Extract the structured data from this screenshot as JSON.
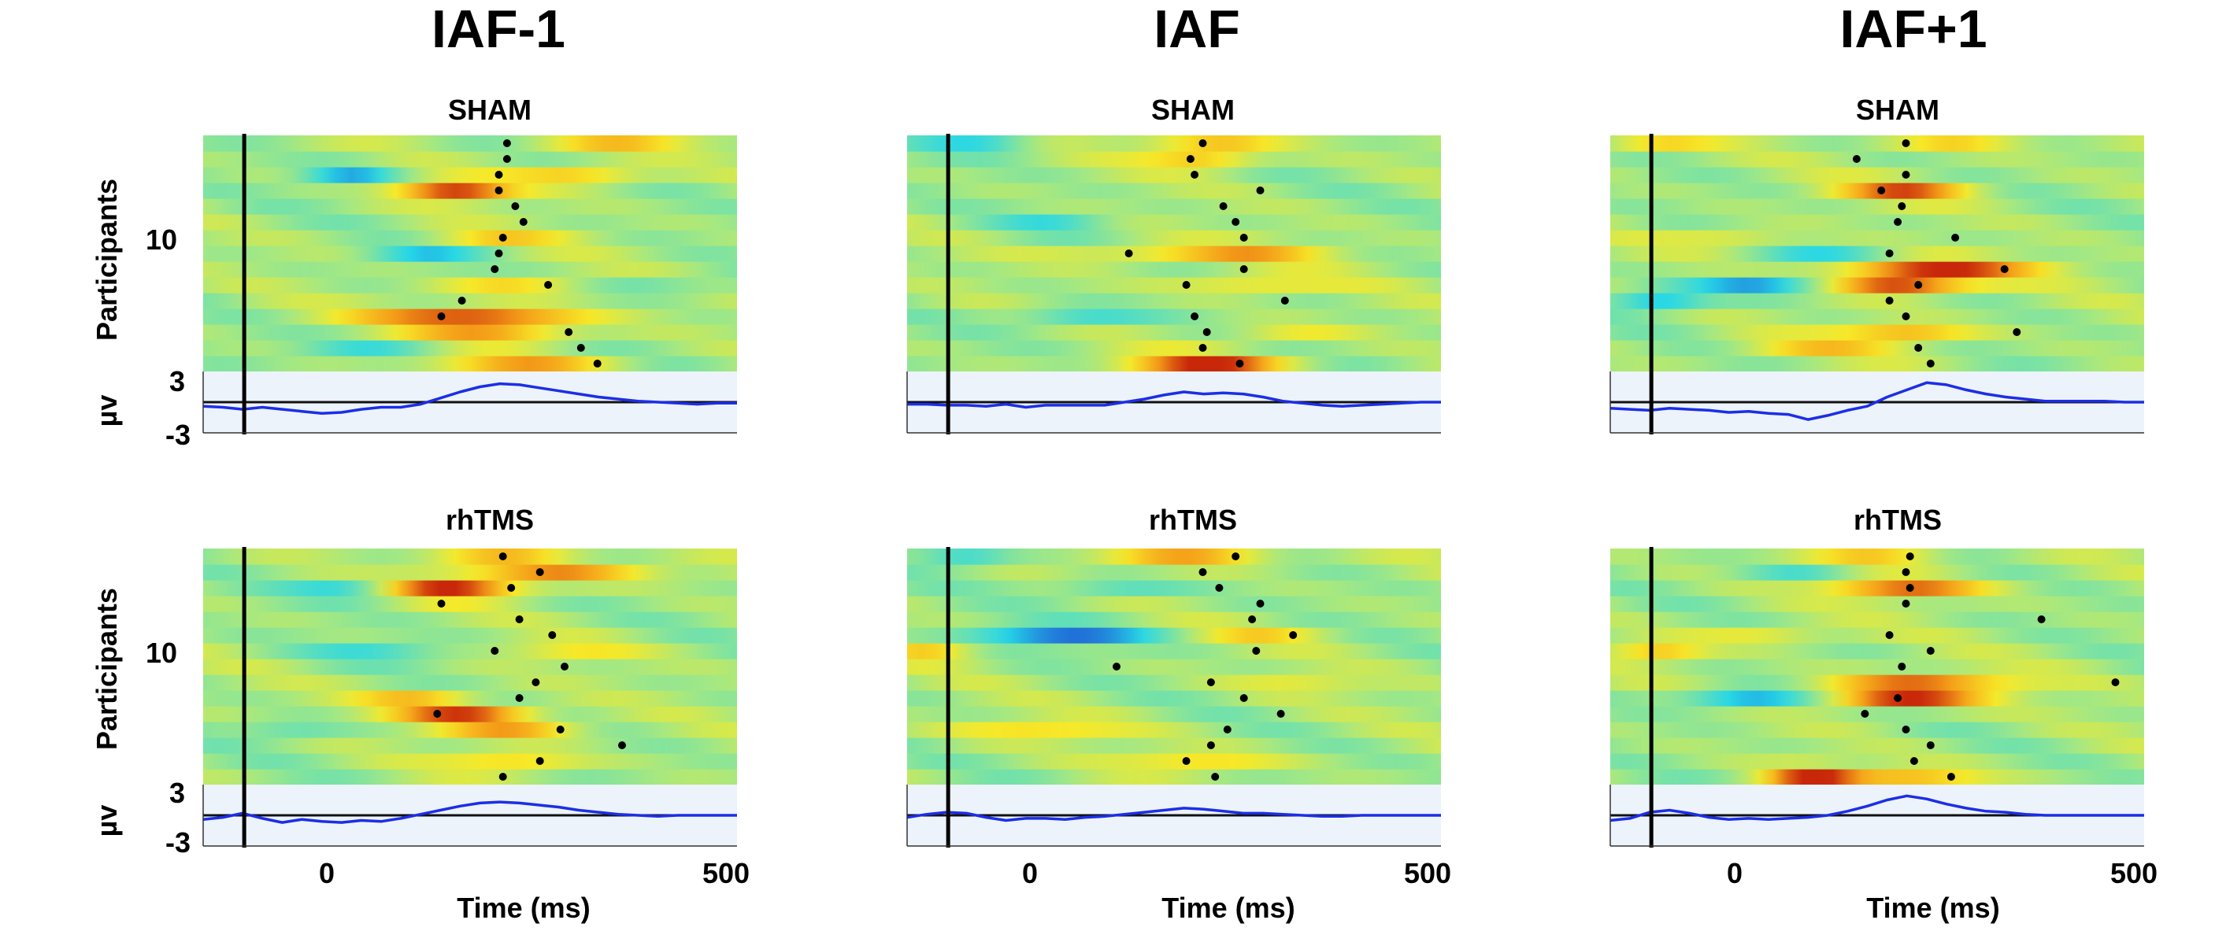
{
  "figure": {
    "columns": [
      "IAF-1",
      "IAF",
      "IAF+1"
    ],
    "rows": [
      "SHAM",
      "rhTMS"
    ],
    "ylabel_heatmap": "Participants",
    "ylabel_erp": "µv",
    "heatmap_y_ticks": [
      "10"
    ],
    "erp_y_ticks": [
      "3",
      "-3"
    ],
    "x_ticks": [
      "0",
      "500"
    ],
    "xlabel": "Time (ms)"
  },
  "chart_data": {
    "type": "heatmap",
    "time_range_ms": [
      -150,
      500
    ],
    "erp_ylim": [
      -3,
      3
    ],
    "participants": 15,
    "colormap": [
      "#1f3fd0",
      "#25d7e8",
      "#a5e882",
      "#f7e928",
      "#f5a019",
      "#c8270a"
    ],
    "panels": [
      {
        "column": "IAF-1",
        "condition": "SHAM",
        "peaks_ms": [
          330,
          310,
          295,
          140,
          165,
          270,
          205,
          210,
          215,
          240,
          230,
          210,
          210,
          220,
          220
        ],
        "blobs": [
          {
            "t": 350,
            "p": 15,
            "w": 70,
            "a": 0.45
          },
          {
            "t": 310,
            "p": 13,
            "w": 60,
            "a": 0.55
          },
          {
            "t": 155,
            "p": 12,
            "w": 50,
            "a": 0.95
          },
          {
            "t": 30,
            "p": 13,
            "w": 40,
            "a": -0.6
          },
          {
            "t": 200,
            "p": 9,
            "w": 70,
            "a": 0.35
          },
          {
            "t": 120,
            "p": 8,
            "w": 50,
            "a": -0.45
          },
          {
            "t": 240,
            "p": 6,
            "w": 70,
            "a": 0.45
          },
          {
            "t": 180,
            "p": 4,
            "w": 90,
            "a": 0.9
          },
          {
            "t": 210,
            "p": 3,
            "w": 70,
            "a": 0.55
          },
          {
            "t": 240,
            "p": 1,
            "w": 80,
            "a": 0.55
          },
          {
            "t": 60,
            "p": 2,
            "w": 60,
            "a": -0.35
          },
          {
            "t": 400,
            "p": 6,
            "w": 80,
            "a": -0.3
          }
        ],
        "erp_uv": [
          -0.4,
          -0.5,
          -0.7,
          -0.5,
          -0.7,
          -0.9,
          -1.1,
          -1.0,
          -0.7,
          -0.5,
          -0.5,
          -0.2,
          0.4,
          1.0,
          1.5,
          1.8,
          1.7,
          1.4,
          1.1,
          0.8,
          0.5,
          0.3,
          0.1,
          0.0,
          -0.1,
          -0.2,
          -0.1,
          -0.1
        ]
      },
      {
        "column": "IAF",
        "condition": "SHAM",
        "peaks_ms": [
          255,
          210,
          215,
          200,
          310,
          190,
          260,
          120,
          260,
          250,
          235,
          280,
          200,
          195,
          210
        ],
        "blobs": [
          {
            "t": 220,
            "p": 15,
            "w": 60,
            "a": 0.5
          },
          {
            "t": 210,
            "p": 14,
            "w": 50,
            "a": 0.5
          },
          {
            "t": -60,
            "p": 15,
            "w": 50,
            "a": -0.45
          },
          {
            "t": 130,
            "p": 8,
            "w": 80,
            "a": 0.35
          },
          {
            "t": 270,
            "p": 8,
            "w": 70,
            "a": 0.45
          },
          {
            "t": 270,
            "p": 6,
            "w": 70,
            "a": 0.4
          },
          {
            "t": 215,
            "p": 1,
            "w": 70,
            "a": 0.9
          },
          {
            "t": 60,
            "p": 4,
            "w": 60,
            "a": -0.45
          },
          {
            "t": 320,
            "p": 3,
            "w": 60,
            "a": 0.3
          },
          {
            "t": 30,
            "p": 10,
            "w": 50,
            "a": -0.3
          }
        ],
        "erp_uv": [
          -0.2,
          -0.2,
          -0.3,
          -0.3,
          -0.4,
          -0.2,
          -0.5,
          -0.3,
          -0.3,
          -0.3,
          -0.3,
          0.0,
          0.3,
          0.7,
          1.0,
          0.8,
          0.9,
          0.8,
          0.5,
          0.1,
          -0.1,
          -0.3,
          -0.4,
          -0.3,
          -0.2,
          -0.1,
          0.0,
          0.0
        ]
      },
      {
        "column": "IAF+1",
        "condition": "SHAM",
        "peaks_ms": [
          240,
          225,
          345,
          210,
          190,
          225,
          330,
          190,
          270,
          200,
          205,
          180,
          210,
          150,
          210
        ],
        "blobs": [
          {
            "t": 210,
            "p": 12,
            "w": 60,
            "a": 0.75
          },
          {
            "t": 240,
            "p": 7,
            "w": 90,
            "a": 0.9
          },
          {
            "t": 200,
            "p": 6,
            "w": 60,
            "a": 0.95
          },
          {
            "t": 30,
            "p": 6,
            "w": 60,
            "a": -0.75
          },
          {
            "t": -90,
            "p": 5,
            "w": 40,
            "a": -0.6
          },
          {
            "t": 210,
            "p": 3,
            "w": 60,
            "a": 0.6
          },
          {
            "t": 100,
            "p": 2,
            "w": 70,
            "a": 0.35
          },
          {
            "t": 0,
            "p": 9,
            "w": 60,
            "a": 0.35
          },
          {
            "t": -100,
            "p": 15,
            "w": 50,
            "a": 0.4
          },
          {
            "t": 270,
            "p": 15,
            "w": 60,
            "a": 0.4
          },
          {
            "t": 120,
            "p": 8,
            "w": 60,
            "a": -0.35
          }
        ],
        "erp_uv": [
          -0.6,
          -0.7,
          -0.8,
          -0.6,
          -0.7,
          -0.8,
          -1.0,
          -0.9,
          -1.1,
          -1.2,
          -1.7,
          -1.3,
          -0.8,
          -0.4,
          0.5,
          1.2,
          1.9,
          1.7,
          1.2,
          0.8,
          0.5,
          0.3,
          0.1,
          0.1,
          0.1,
          0.1,
          0.0,
          0.0
        ]
      },
      {
        "column": "IAF-1",
        "condition": "rhTMS",
        "peaks_ms": [
          215,
          260,
          360,
          285,
          135,
          235,
          255,
          290,
          205,
          275,
          235,
          140,
          225,
          260,
          215
        ],
        "blobs": [
          {
            "t": 290,
            "p": 14,
            "w": 80,
            "a": 0.65
          },
          {
            "t": 150,
            "p": 13,
            "w": 60,
            "a": 0.95
          },
          {
            "t": 215,
            "p": 15,
            "w": 60,
            "a": 0.45
          },
          {
            "t": 30,
            "p": 13,
            "w": 50,
            "a": -0.5
          },
          {
            "t": 110,
            "p": 6,
            "w": 50,
            "a": 0.45
          },
          {
            "t": 170,
            "p": 5,
            "w": 60,
            "a": 0.85
          },
          {
            "t": 230,
            "p": 4,
            "w": 60,
            "a": 0.55
          },
          {
            "t": 230,
            "p": 2,
            "w": 60,
            "a": 0.45
          },
          {
            "t": 60,
            "p": 9,
            "w": 60,
            "a": -0.35
          },
          {
            "t": -40,
            "p": 4,
            "w": 50,
            "a": -0.3
          },
          {
            "t": 300,
            "p": 9,
            "w": 60,
            "a": 0.3
          }
        ],
        "erp_uv": [
          -0.4,
          -0.2,
          0.2,
          -0.3,
          -0.7,
          -0.4,
          -0.6,
          -0.7,
          -0.5,
          -0.6,
          -0.3,
          0.1,
          0.5,
          0.9,
          1.2,
          1.3,
          1.2,
          1.0,
          0.8,
          0.5,
          0.3,
          0.1,
          0.0,
          -0.1,
          0.0,
          0.0,
          0.0,
          0.0
        ]
      },
      {
        "column": "IAF",
        "condition": "rhTMS",
        "peaks_ms": [
          225,
          190,
          220,
          240,
          305,
          260,
          220,
          105,
          275,
          320,
          270,
          280,
          230,
          210,
          250
        ],
        "blobs": [
          {
            "t": 200,
            "p": 15,
            "w": 70,
            "a": 0.6
          },
          {
            "t": 40,
            "p": 10,
            "w": 80,
            "a": -0.8
          },
          {
            "t": -120,
            "p": 9,
            "w": 40,
            "a": 0.45
          },
          {
            "t": 280,
            "p": 10,
            "w": 60,
            "a": 0.3
          },
          {
            "t": 10,
            "p": 4,
            "w": 80,
            "a": 0.4
          },
          {
            "t": 210,
            "p": 2,
            "w": 70,
            "a": 0.4
          },
          {
            "t": 100,
            "p": 13,
            "w": 60,
            "a": -0.35
          },
          {
            "t": -80,
            "p": 15,
            "w": 40,
            "a": -0.45
          },
          {
            "t": 330,
            "p": 7,
            "w": 60,
            "a": 0.25
          }
        ],
        "erp_uv": [
          -0.2,
          0.1,
          0.3,
          0.2,
          -0.2,
          -0.5,
          -0.3,
          -0.3,
          -0.4,
          -0.2,
          -0.1,
          0.1,
          0.3,
          0.5,
          0.7,
          0.6,
          0.4,
          0.2,
          0.2,
          0.1,
          0.0,
          -0.1,
          -0.1,
          0.0,
          0.0,
          0.0,
          0.0,
          0.0
        ]
      },
      {
        "column": "IAF+1",
        "condition": "rhTMS",
        "peaks_ms": [
          265,
          220,
          240,
          210,
          160,
          200,
          465,
          205,
          240,
          190,
          375,
          210,
          215,
          210,
          215
        ],
        "blobs": [
          {
            "t": 210,
            "p": 13,
            "w": 70,
            "a": 0.8
          },
          {
            "t": 200,
            "p": 6,
            "w": 70,
            "a": 0.95
          },
          {
            "t": 230,
            "p": 7,
            "w": 90,
            "a": 0.65
          },
          {
            "t": 20,
            "p": 6,
            "w": 60,
            "a": -0.75
          },
          {
            "t": 95,
            "p": 1,
            "w": 40,
            "a": 0.9
          },
          {
            "t": 220,
            "p": 1,
            "w": 60,
            "a": 0.55
          },
          {
            "t": -90,
            "p": 9,
            "w": 40,
            "a": 0.5
          },
          {
            "t": 180,
            "p": 15,
            "w": 60,
            "a": 0.45
          },
          {
            "t": 40,
            "p": 10,
            "w": 60,
            "a": 0.35
          },
          {
            "t": 80,
            "p": 14,
            "w": 50,
            "a": -0.35
          }
        ],
        "erp_uv": [
          -0.5,
          -0.3,
          0.3,
          0.5,
          0.2,
          -0.2,
          -0.4,
          -0.3,
          -0.4,
          -0.3,
          -0.2,
          0.0,
          0.4,
          0.9,
          1.5,
          1.9,
          1.6,
          1.1,
          0.7,
          0.4,
          0.3,
          0.1,
          0.0,
          0.0,
          0.0,
          0.0,
          0.0,
          0.0
        ]
      }
    ]
  }
}
